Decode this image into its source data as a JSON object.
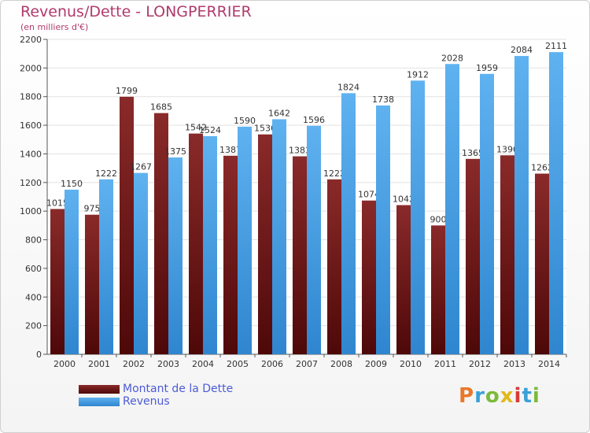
{
  "chart_data": {
    "type": "bar",
    "title": "Revenus/Dette - LONGPERRIER",
    "subtitle": "(en milliers d'€)",
    "categories": [
      "2000",
      "2001",
      "2002",
      "2003",
      "2004",
      "2005",
      "2006",
      "2007",
      "2008",
      "2009",
      "2010",
      "2011",
      "2012",
      "2013",
      "2014"
    ],
    "series": [
      {
        "name": "Montant de la Dette",
        "color": "#7a1a1a",
        "values": [
          1015,
          975,
          1799,
          1685,
          1542,
          1387,
          1536,
          1383,
          1222,
          1074,
          1042,
          900,
          1365,
          1390,
          1262
        ],
        "labels": [
          "1015",
          "975",
          "1799",
          "1685",
          "1542",
          "1387",
          "1536",
          "1383",
          "1222",
          "1074",
          "1042",
          "900",
          "1365",
          "1390",
          "1262"
        ]
      },
      {
        "name": "Revenus",
        "color": "#4aa3e8",
        "values": [
          1150,
          1222,
          1267,
          1375,
          1524,
          1590,
          1642,
          1596,
          1824,
          1738,
          1912,
          2028,
          1959,
          2084,
          2111
        ],
        "labels": [
          "1150",
          "1222",
          "1267",
          "1375",
          "1524",
          "1590",
          "1642",
          "1596",
          "1824",
          "1738",
          "1912",
          "2028",
          "1959",
          "2084",
          "2111"
        ]
      }
    ],
    "yticks": [
      0,
      200,
      400,
      600,
      800,
      1000,
      1200,
      1400,
      1600,
      1800,
      2000,
      2200
    ],
    "ylim": [
      0,
      2200
    ],
    "grid": true,
    "legend_position": "bottom-left"
  },
  "logo": {
    "letters": [
      "P",
      "r",
      "o",
      "x",
      "i",
      "t",
      "i"
    ],
    "colors": [
      "#e8792b",
      "#3aa0d8",
      "#7cba3a",
      "#e2b81d",
      "#d83a3a",
      "#3aa0d8",
      "#7cba3a"
    ]
  }
}
